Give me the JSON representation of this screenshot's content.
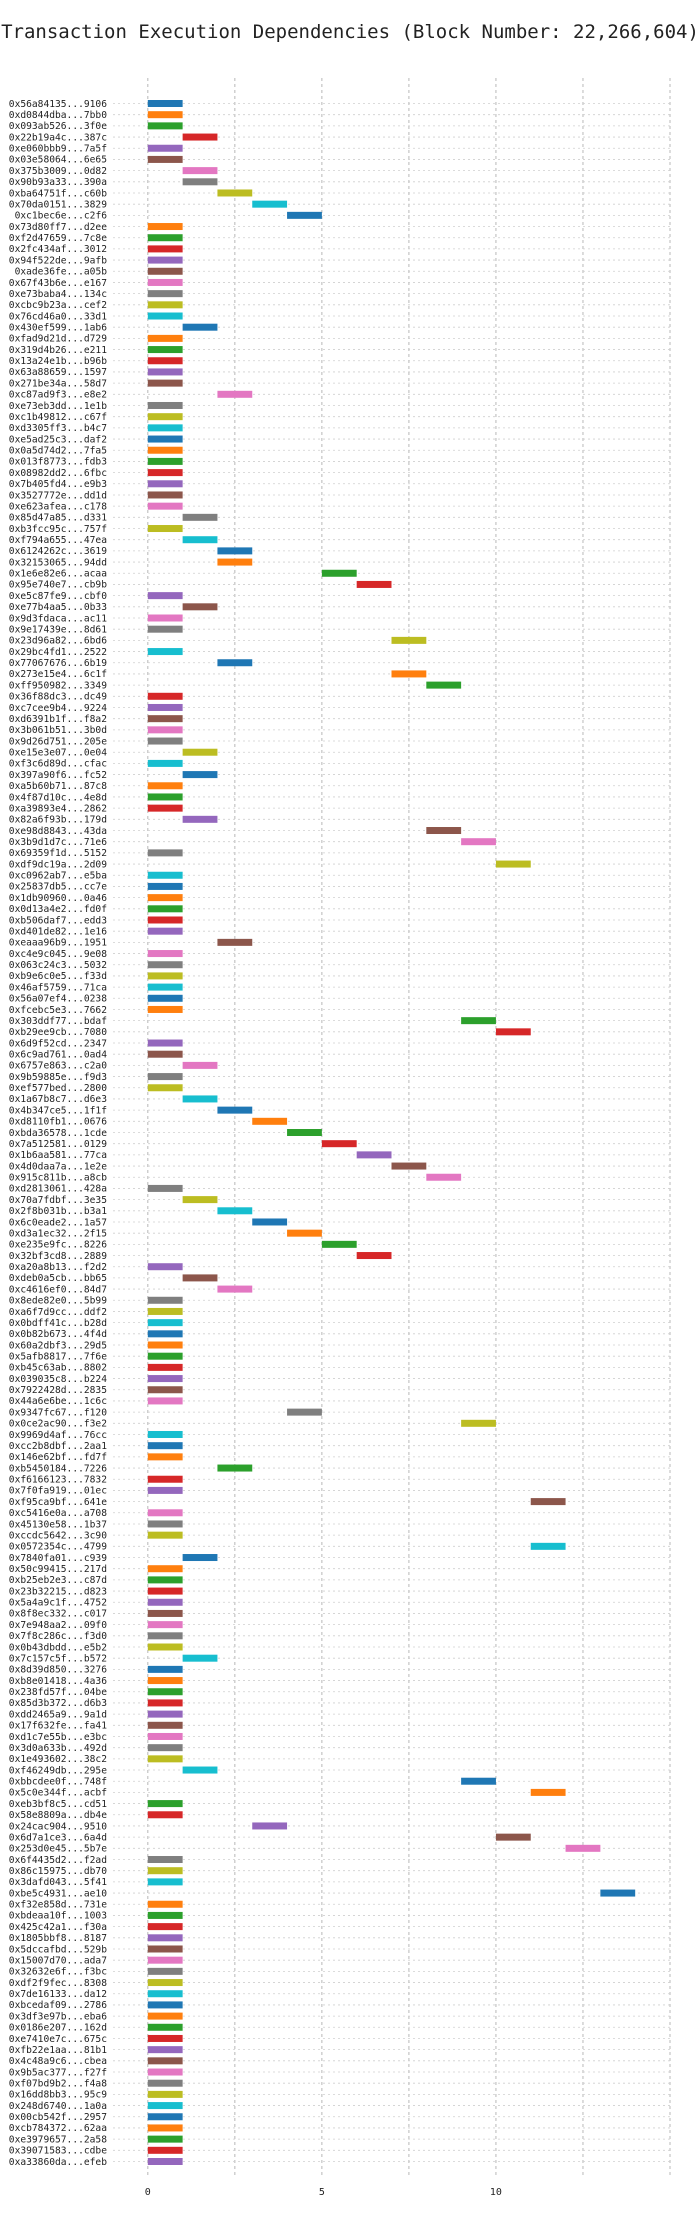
{
  "chart_data": {
    "type": "bar",
    "orientation": "horizontal",
    "title": "Transaction Execution Dependencies (Block Number: 22,266,604)",
    "xlabel": "",
    "ylabel": "",
    "xlim": [
      -1,
      15
    ],
    "xticks": [
      0,
      5,
      10
    ],
    "grid": true,
    "legend": "none",
    "colors": [
      "#1f77b4",
      "#ff7f0e",
      "#2ca02c",
      "#d62728",
      "#9467bd",
      "#8c564b",
      "#e377c2",
      "#7f7f7f",
      "#bcbd22",
      "#17becf"
    ],
    "transactions": [
      {
        "label": "0x56a84135...9106",
        "start": 0,
        "end": 1
      },
      {
        "label": "0xd0844dba...7bb0",
        "start": 0,
        "end": 1
      },
      {
        "label": "0x093ab526...3f0e",
        "start": 0,
        "end": 1
      },
      {
        "label": "0x22b19a4c...387c",
        "start": 1,
        "end": 2
      },
      {
        "label": "0xe060bbb9...7a5f",
        "start": 0,
        "end": 1
      },
      {
        "label": "0x03e58064...6e65",
        "start": 0,
        "end": 1
      },
      {
        "label": "0x375b3009...0d82",
        "start": 1,
        "end": 2
      },
      {
        "label": "0x90b93a33...390a",
        "start": 1,
        "end": 2
      },
      {
        "label": "0xba64751f...c60b",
        "start": 2,
        "end": 3
      },
      {
        "label": "0x70da0151...3829",
        "start": 3,
        "end": 4
      },
      {
        "label": "0xc1bec6e...c2f6",
        "start": 4,
        "end": 5
      },
      {
        "label": "0x73d80ff7...d2ee",
        "start": 0,
        "end": 1
      },
      {
        "label": "0xf2d47659...7c8e",
        "start": 0,
        "end": 1
      },
      {
        "label": "0x2fc434af...3012",
        "start": 0,
        "end": 1
      },
      {
        "label": "0x94f522de...9afb",
        "start": 0,
        "end": 1
      },
      {
        "label": "0xade36fe...a05b",
        "start": 0,
        "end": 1
      },
      {
        "label": "0x67f43b6e...e167",
        "start": 0,
        "end": 1
      },
      {
        "label": "0xe73baba4...134c",
        "start": 0,
        "end": 1
      },
      {
        "label": "0xcbc9b23a...cef2",
        "start": 0,
        "end": 1
      },
      {
        "label": "0x76cd46a0...33d1",
        "start": 0,
        "end": 1
      },
      {
        "label": "0x430ef599...1ab6",
        "start": 1,
        "end": 2
      },
      {
        "label": "0xfad9d21d...d729",
        "start": 0,
        "end": 1
      },
      {
        "label": "0x319d4b26...e211",
        "start": 0,
        "end": 1
      },
      {
        "label": "0x13a24e1b...b96b",
        "start": 0,
        "end": 1
      },
      {
        "label": "0x63a88659...1597",
        "start": 0,
        "end": 1
      },
      {
        "label": "0x271be34a...58d7",
        "start": 0,
        "end": 1
      },
      {
        "label": "0xc87ad9f3...e8e2",
        "start": 2,
        "end": 3
      },
      {
        "label": "0xe73eb3dd...1e1b",
        "start": 0,
        "end": 1
      },
      {
        "label": "0xc1b49812...c67f",
        "start": 0,
        "end": 1
      },
      {
        "label": "0xd3305ff3...b4c7",
        "start": 0,
        "end": 1
      },
      {
        "label": "0xe5ad25c3...daf2",
        "start": 0,
        "end": 1
      },
      {
        "label": "0x0a5d74d2...7fa5",
        "start": 0,
        "end": 1
      },
      {
        "label": "0x013f8773...fdb3",
        "start": 0,
        "end": 1
      },
      {
        "label": "0x08982dd2...6fbc",
        "start": 0,
        "end": 1
      },
      {
        "label": "0x7b405fd4...e9b3",
        "start": 0,
        "end": 1
      },
      {
        "label": "0x3527772e...dd1d",
        "start": 0,
        "end": 1
      },
      {
        "label": "0xe623afea...c178",
        "start": 0,
        "end": 1
      },
      {
        "label": "0x85d47a85...d331",
        "start": 1,
        "end": 2
      },
      {
        "label": "0xb3fcc95c...757f",
        "start": 0,
        "end": 1
      },
      {
        "label": "0xf794a655...47ea",
        "start": 1,
        "end": 2
      },
      {
        "label": "0x6124262c...3619",
        "start": 2,
        "end": 3
      },
      {
        "label": "0x32153065...94dd",
        "start": 2,
        "end": 3
      },
      {
        "label": "0x1e6e82e6...acaa",
        "start": 5,
        "end": 6
      },
      {
        "label": "0x95e740e7...cb9b",
        "start": 6,
        "end": 7
      },
      {
        "label": "0xe5c87fe9...cbf0",
        "start": 0,
        "end": 1
      },
      {
        "label": "0xe77b4aa5...0b33",
        "start": 1,
        "end": 2
      },
      {
        "label": "0x9d3fdaca...ac11",
        "start": 0,
        "end": 1
      },
      {
        "label": "0x9e17439e...8d61",
        "start": 0,
        "end": 1
      },
      {
        "label": "0x23d96a82...6bd6",
        "start": 7,
        "end": 8
      },
      {
        "label": "0x29bc4fd1...2522",
        "start": 0,
        "end": 1
      },
      {
        "label": "0x77067676...6b19",
        "start": 2,
        "end": 3
      },
      {
        "label": "0x273e15e4...6c1f",
        "start": 7,
        "end": 8
      },
      {
        "label": "0xff950982...3349",
        "start": 8,
        "end": 9
      },
      {
        "label": "0x36f88dc3...dc49",
        "start": 0,
        "end": 1
      },
      {
        "label": "0xc7cee9b4...9224",
        "start": 0,
        "end": 1
      },
      {
        "label": "0xd6391b1f...f8a2",
        "start": 0,
        "end": 1
      },
      {
        "label": "0x3b061b51...3b0d",
        "start": 0,
        "end": 1
      },
      {
        "label": "0x9d26d751...205e",
        "start": 0,
        "end": 1
      },
      {
        "label": "0xe15e3e07...0e04",
        "start": 1,
        "end": 2
      },
      {
        "label": "0xf3c6d89d...cfac",
        "start": 0,
        "end": 1
      },
      {
        "label": "0x397a90f6...fc52",
        "start": 1,
        "end": 2
      },
      {
        "label": "0xa5b60b71...87c8",
        "start": 0,
        "end": 1
      },
      {
        "label": "0x4f87d10c...4e8d",
        "start": 0,
        "end": 1
      },
      {
        "label": "0xa39893e4...2862",
        "start": 0,
        "end": 1
      },
      {
        "label": "0x82a6f93b...179d",
        "start": 1,
        "end": 2
      },
      {
        "label": "0xe98d8843...43da",
        "start": 8,
        "end": 9
      },
      {
        "label": "0x3b9d1d7c...71e6",
        "start": 9,
        "end": 10
      },
      {
        "label": "0x69359f1d...5152",
        "start": 0,
        "end": 1
      },
      {
        "label": "0xdf9dc19a...2d09",
        "start": 10,
        "end": 11
      },
      {
        "label": "0xc0962ab7...e5ba",
        "start": 0,
        "end": 1
      },
      {
        "label": "0x25837db5...cc7e",
        "start": 0,
        "end": 1
      },
      {
        "label": "0x1db90960...0a46",
        "start": 0,
        "end": 1
      },
      {
        "label": "0x0d13a4e2...fd0f",
        "start": 0,
        "end": 1
      },
      {
        "label": "0xb506daf7...edd3",
        "start": 0,
        "end": 1
      },
      {
        "label": "0xd401de82...1e16",
        "start": 0,
        "end": 1
      },
      {
        "label": "0xeaaa96b9...1951",
        "start": 2,
        "end": 3
      },
      {
        "label": "0xc4e9c045...9e08",
        "start": 0,
        "end": 1
      },
      {
        "label": "0x063c24c3...5032",
        "start": 0,
        "end": 1
      },
      {
        "label": "0xb9e6c0e5...f33d",
        "start": 0,
        "end": 1
      },
      {
        "label": "0x46af5759...71ca",
        "start": 0,
        "end": 1
      },
      {
        "label": "0x56a07ef4...0238",
        "start": 0,
        "end": 1
      },
      {
        "label": "0xfcebc5e3...7662",
        "start": 0,
        "end": 1
      },
      {
        "label": "0x303ddf77...bdaf",
        "start": 9,
        "end": 10
      },
      {
        "label": "0xb29ee9cb...7080",
        "start": 10,
        "end": 11
      },
      {
        "label": "0x6d9f52cd...2347",
        "start": 0,
        "end": 1
      },
      {
        "label": "0x6c9ad761...0ad4",
        "start": 0,
        "end": 1
      },
      {
        "label": "0x6757e863...c2a0",
        "start": 1,
        "end": 2
      },
      {
        "label": "0x9b59885e...f9d3",
        "start": 0,
        "end": 1
      },
      {
        "label": "0xef577bed...2800",
        "start": 0,
        "end": 1
      },
      {
        "label": "0x1a67b8c7...d6e3",
        "start": 1,
        "end": 2
      },
      {
        "label": "0x4b347ce5...1f1f",
        "start": 2,
        "end": 3
      },
      {
        "label": "0xd8110fb1...0676",
        "start": 3,
        "end": 4
      },
      {
        "label": "0xbda36578...1cde",
        "start": 4,
        "end": 5
      },
      {
        "label": "0x7a512581...0129",
        "start": 5,
        "end": 6
      },
      {
        "label": "0x1b6aa581...77ca",
        "start": 6,
        "end": 7
      },
      {
        "label": "0x4d0daa7a...1e2e",
        "start": 7,
        "end": 8
      },
      {
        "label": "0x915c811b...a8cb",
        "start": 8,
        "end": 9
      },
      {
        "label": "0xd2813061...428a",
        "start": 0,
        "end": 1
      },
      {
        "label": "0x70a7fdbf...3e35",
        "start": 1,
        "end": 2
      },
      {
        "label": "0x2f8b031b...b3a1",
        "start": 2,
        "end": 3
      },
      {
        "label": "0x6c0eade2...1a57",
        "start": 3,
        "end": 4
      },
      {
        "label": "0xd3a1ec32...2f15",
        "start": 4,
        "end": 5
      },
      {
        "label": "0xe235e9fc...8226",
        "start": 5,
        "end": 6
      },
      {
        "label": "0x32bf3cd8...2889",
        "start": 6,
        "end": 7
      },
      {
        "label": "0xa20a8b13...f2d2",
        "start": 0,
        "end": 1
      },
      {
        "label": "0xdeb0a5cb...bb65",
        "start": 1,
        "end": 2
      },
      {
        "label": "0xc4616ef0...84d7",
        "start": 2,
        "end": 3
      },
      {
        "label": "0x8ede82e0...5b99",
        "start": 0,
        "end": 1
      },
      {
        "label": "0xa6f7d9cc...ddf2",
        "start": 0,
        "end": 1
      },
      {
        "label": "0x0bdff41c...b28d",
        "start": 0,
        "end": 1
      },
      {
        "label": "0x0b82b673...4f4d",
        "start": 0,
        "end": 1
      },
      {
        "label": "0x60a2dbf3...29d5",
        "start": 0,
        "end": 1
      },
      {
        "label": "0x5afb8817...7f6e",
        "start": 0,
        "end": 1
      },
      {
        "label": "0xb45c63ab...8802",
        "start": 0,
        "end": 1
      },
      {
        "label": "0x039035c8...b224",
        "start": 0,
        "end": 1
      },
      {
        "label": "0x7922428d...2835",
        "start": 0,
        "end": 1
      },
      {
        "label": "0x44a6e6be...1c6c",
        "start": 0,
        "end": 1
      },
      {
        "label": "0x9347fc67...f120",
        "start": 4,
        "end": 5
      },
      {
        "label": "0x0ce2ac90...f3e2",
        "start": 9,
        "end": 10
      },
      {
        "label": "0x9969d4af...76cc",
        "start": 0,
        "end": 1
      },
      {
        "label": "0xcc2b8dbf...2aa1",
        "start": 0,
        "end": 1
      },
      {
        "label": "0x146e62bf...fd7f",
        "start": 0,
        "end": 1
      },
      {
        "label": "0xb5450184...7226",
        "start": 2,
        "end": 3
      },
      {
        "label": "0xf6166123...7832",
        "start": 0,
        "end": 1
      },
      {
        "label": "0x7f0fa919...01ec",
        "start": 0,
        "end": 1
      },
      {
        "label": "0xf95ca9bf...641e",
        "start": 11,
        "end": 12
      },
      {
        "label": "0xc5416e0a...a708",
        "start": 0,
        "end": 1
      },
      {
        "label": "0x45130e58...1b37",
        "start": 0,
        "end": 1
      },
      {
        "label": "0xccdc5642...3c90",
        "start": 0,
        "end": 1
      },
      {
        "label": "0x0572354c...4799",
        "start": 11,
        "end": 12
      },
      {
        "label": "0x7840fa01...c939",
        "start": 1,
        "end": 2
      },
      {
        "label": "0x50c99415...217d",
        "start": 0,
        "end": 1
      },
      {
        "label": "0xb25eb2e3...c87d",
        "start": 0,
        "end": 1
      },
      {
        "label": "0x23b32215...d823",
        "start": 0,
        "end": 1
      },
      {
        "label": "0x5a4a9c1f...4752",
        "start": 0,
        "end": 1
      },
      {
        "label": "0x8f8ec332...c017",
        "start": 0,
        "end": 1
      },
      {
        "label": "0x7e948aa2...09f0",
        "start": 0,
        "end": 1
      },
      {
        "label": "0x7f8c286c...f3d0",
        "start": 0,
        "end": 1
      },
      {
        "label": "0x0b43dbdd...e5b2",
        "start": 0,
        "end": 1
      },
      {
        "label": "0x7c157c5f...b572",
        "start": 1,
        "end": 2
      },
      {
        "label": "0x8d39d850...3276",
        "start": 0,
        "end": 1
      },
      {
        "label": "0xb8e01418...4a36",
        "start": 0,
        "end": 1
      },
      {
        "label": "0x238fd57f...04be",
        "start": 0,
        "end": 1
      },
      {
        "label": "0x85d3b372...d6b3",
        "start": 0,
        "end": 1
      },
      {
        "label": "0xdd2465a9...9a1d",
        "start": 0,
        "end": 1
      },
      {
        "label": "0x17f632fe...fa41",
        "start": 0,
        "end": 1
      },
      {
        "label": "0xd1c7e55b...e3bc",
        "start": 0,
        "end": 1
      },
      {
        "label": "0x3d0a633b...492d",
        "start": 0,
        "end": 1
      },
      {
        "label": "0x1e493602...38c2",
        "start": 0,
        "end": 1
      },
      {
        "label": "0xf46249db...295e",
        "start": 1,
        "end": 2
      },
      {
        "label": "0xbbcdee0f...748f",
        "start": 9,
        "end": 10
      },
      {
        "label": "0x5c0e344f...acbf",
        "start": 11,
        "end": 12
      },
      {
        "label": "0xeb3bf8c5...cd51",
        "start": 0,
        "end": 1
      },
      {
        "label": "0x58e8809a...db4e",
        "start": 0,
        "end": 1
      },
      {
        "label": "0x24cac904...9510",
        "start": 3,
        "end": 4
      },
      {
        "label": "0x6d7a1ce3...6a4d",
        "start": 10,
        "end": 11
      },
      {
        "label": "0x253d0e45...5b7e",
        "start": 12,
        "end": 13
      },
      {
        "label": "0x6f4435d2...f2ad",
        "start": 0,
        "end": 1
      },
      {
        "label": "0x86c15975...db70",
        "start": 0,
        "end": 1
      },
      {
        "label": "0x3dafd043...5f41",
        "start": 0,
        "end": 1
      },
      {
        "label": "0xbe5c4931...ae10",
        "start": 13,
        "end": 14
      },
      {
        "label": "0xf32e858d...731e",
        "start": 0,
        "end": 1
      },
      {
        "label": "0xbdeaa10f...1003",
        "start": 0,
        "end": 1
      },
      {
        "label": "0x425c42a1...f30a",
        "start": 0,
        "end": 1
      },
      {
        "label": "0x1805bbf8...8187",
        "start": 0,
        "end": 1
      },
      {
        "label": "0x5dccafbd...529b",
        "start": 0,
        "end": 1
      },
      {
        "label": "0x15007d70...ada7",
        "start": 0,
        "end": 1
      },
      {
        "label": "0x32632e6f...f3bc",
        "start": 0,
        "end": 1
      },
      {
        "label": "0xdf2f9fec...8308",
        "start": 0,
        "end": 1
      },
      {
        "label": "0x7de16133...da12",
        "start": 0,
        "end": 1
      },
      {
        "label": "0xbcedaf09...2786",
        "start": 0,
        "end": 1
      },
      {
        "label": "0x3df3e97b...eba6",
        "start": 0,
        "end": 1
      },
      {
        "label": "0x0186e207...162d",
        "start": 0,
        "end": 1
      },
      {
        "label": "0xe7410e7c...675c",
        "start": 0,
        "end": 1
      },
      {
        "label": "0xfb22e1aa...81b1",
        "start": 0,
        "end": 1
      },
      {
        "label": "0x4c48a9c6...cbea",
        "start": 0,
        "end": 1
      },
      {
        "label": "0x9b5ac377...f27f",
        "start": 0,
        "end": 1
      },
      {
        "label": "0xf07bd9b2...f4a8",
        "start": 0,
        "end": 1
      },
      {
        "label": "0x16dd8bb3...95c9",
        "start": 0,
        "end": 1
      },
      {
        "label": "0x248d6740...1a0a",
        "start": 0,
        "end": 1
      },
      {
        "label": "0x00cb542f...2957",
        "start": 0,
        "end": 1
      },
      {
        "label": "0xcb784372...62aa",
        "start": 0,
        "end": 1
      },
      {
        "label": "0xe3979657...2a58",
        "start": 0,
        "end": 1
      },
      {
        "label": "0x39071583...cdbe",
        "start": 0,
        "end": 1
      },
      {
        "label": "0xa33860da...efeb",
        "start": 0,
        "end": 1
      }
    ]
  }
}
